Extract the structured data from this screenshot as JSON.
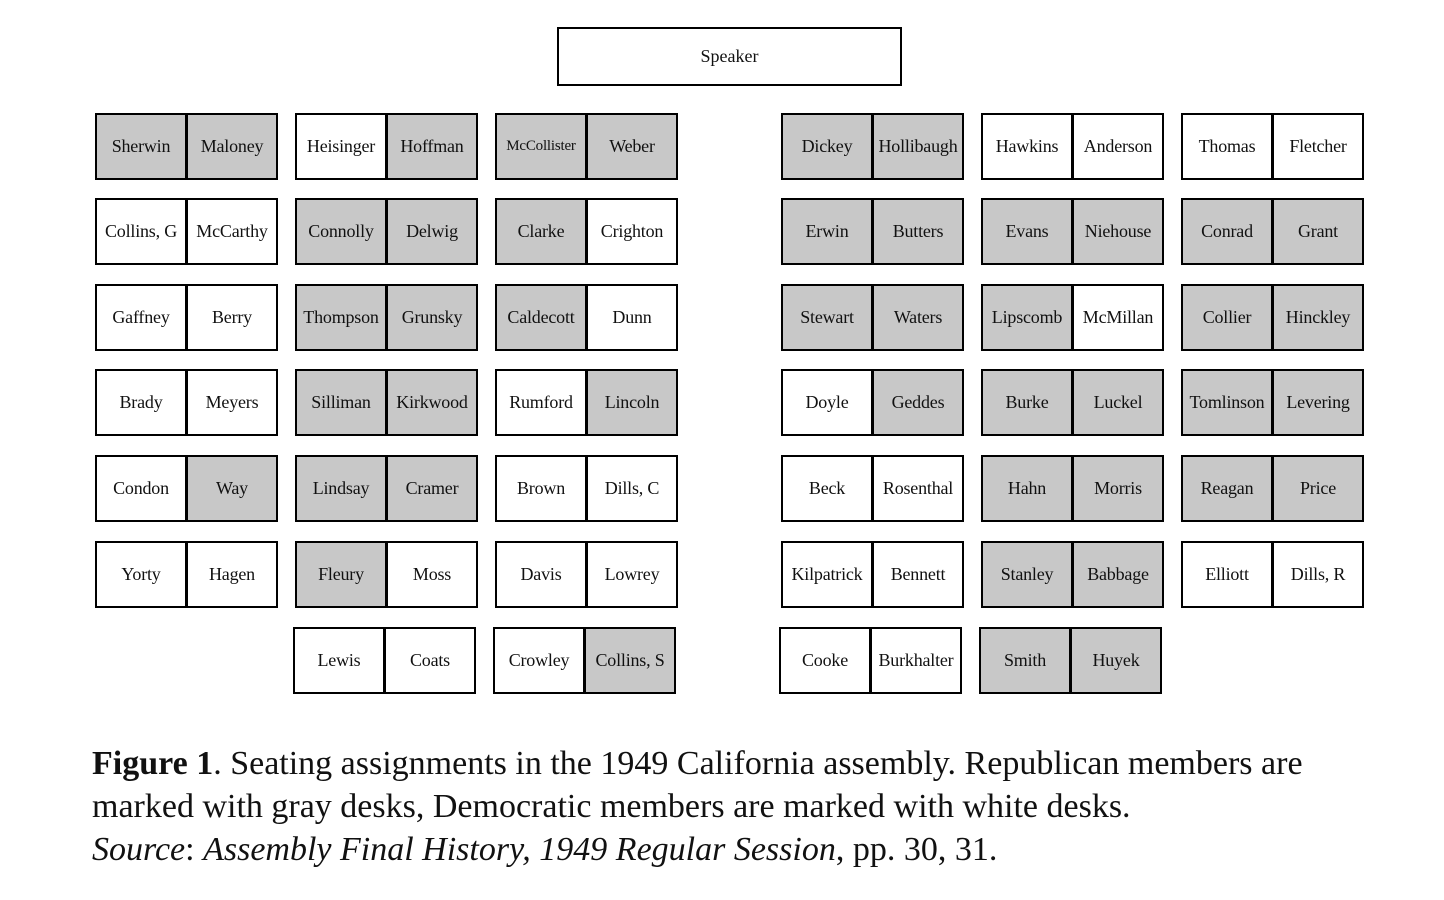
{
  "speaker": "Speaker",
  "party_colors": {
    "Republican": "#c8c8c8",
    "Democratic": "#ffffff"
  },
  "blocks": [
    {
      "rows": [
        [
          [
            "Sherwin",
            "R"
          ],
          [
            "Maloney",
            "R"
          ]
        ],
        [
          [
            "Collins, G",
            "D"
          ],
          [
            "McCarthy",
            "D"
          ]
        ],
        [
          [
            "Gaffney",
            "D"
          ],
          [
            "Berry",
            "D"
          ]
        ],
        [
          [
            "Brady",
            "D"
          ],
          [
            "Meyers",
            "D"
          ]
        ],
        [
          [
            "Condon",
            "D"
          ],
          [
            "Way",
            "R"
          ]
        ],
        [
          [
            "Yorty",
            "D"
          ],
          [
            "Hagen",
            "D"
          ]
        ]
      ]
    },
    {
      "rows": [
        [
          [
            "Heisinger",
            "D"
          ],
          [
            "Hoffman",
            "R"
          ]
        ],
        [
          [
            "Connolly",
            "R"
          ],
          [
            "Delwig",
            "R"
          ]
        ],
        [
          [
            "Thompson",
            "R"
          ],
          [
            "Grunsky",
            "R"
          ]
        ],
        [
          [
            "Silliman",
            "R"
          ],
          [
            "Kirkwood",
            "R"
          ]
        ],
        [
          [
            "Lindsay",
            "R"
          ],
          [
            "Cramer",
            "R"
          ]
        ],
        [
          [
            "Fleury",
            "R"
          ],
          [
            "Moss",
            "D"
          ]
        ],
        [
          [
            "Lewis",
            "D"
          ],
          [
            "Coats",
            "D"
          ]
        ]
      ]
    },
    {
      "rows": [
        [
          [
            "McCollister",
            "R"
          ],
          [
            "Weber",
            "R"
          ]
        ],
        [
          [
            "Clarke",
            "R"
          ],
          [
            "Crighton",
            "D"
          ]
        ],
        [
          [
            "Caldecott",
            "R"
          ],
          [
            "Dunn",
            "D"
          ]
        ],
        [
          [
            "Rumford",
            "D"
          ],
          [
            "Lincoln",
            "R"
          ]
        ],
        [
          [
            "Brown",
            "D"
          ],
          [
            "Dills, C",
            "D"
          ]
        ],
        [
          [
            "Davis",
            "D"
          ],
          [
            "Lowrey",
            "D"
          ]
        ],
        [
          [
            "Crowley",
            "D"
          ],
          [
            "Collins, S",
            "R"
          ]
        ]
      ]
    },
    {
      "rows": [
        [
          [
            "Dickey",
            "R"
          ],
          [
            "Hollibaugh",
            "R"
          ]
        ],
        [
          [
            "Erwin",
            "R"
          ],
          [
            "Butters",
            "R"
          ]
        ],
        [
          [
            "Stewart",
            "R"
          ],
          [
            "Waters",
            "R"
          ]
        ],
        [
          [
            "Doyle",
            "D"
          ],
          [
            "Geddes",
            "R"
          ]
        ],
        [
          [
            "Beck",
            "D"
          ],
          [
            "Rosenthal",
            "D"
          ]
        ],
        [
          [
            "Kilpatrick",
            "D"
          ],
          [
            "Bennett",
            "D"
          ]
        ],
        [
          [
            "Cooke",
            "D"
          ],
          [
            "Burkhalter",
            "D"
          ]
        ]
      ]
    },
    {
      "rows": [
        [
          [
            "Hawkins",
            "D"
          ],
          [
            "Anderson",
            "D"
          ]
        ],
        [
          [
            "Evans",
            "R"
          ],
          [
            "Niehouse",
            "R"
          ]
        ],
        [
          [
            "Lipscomb",
            "R"
          ],
          [
            "McMillan",
            "D"
          ]
        ],
        [
          [
            "Burke",
            "R"
          ],
          [
            "Luckel",
            "R"
          ]
        ],
        [
          [
            "Hahn",
            "R"
          ],
          [
            "Morris",
            "R"
          ]
        ],
        [
          [
            "Stanley",
            "R"
          ],
          [
            "Babbage",
            "R"
          ]
        ],
        [
          [
            "Smith",
            "R"
          ],
          [
            "Huyek",
            "R"
          ]
        ]
      ]
    },
    {
      "rows": [
        [
          [
            "Thomas",
            "D"
          ],
          [
            "Fletcher",
            "D"
          ]
        ],
        [
          [
            "Conrad",
            "R"
          ],
          [
            "Grant",
            "R"
          ]
        ],
        [
          [
            "Collier",
            "R"
          ],
          [
            "Hinckley",
            "R"
          ]
        ],
        [
          [
            "Tomlinson",
            "R"
          ],
          [
            "Levering",
            "R"
          ]
        ],
        [
          [
            "Reagan",
            "R"
          ],
          [
            "Price",
            "R"
          ]
        ],
        [
          [
            "Elliott",
            "D"
          ],
          [
            "Dills, R",
            "D"
          ]
        ]
      ]
    }
  ],
  "caption": {
    "figure_label": "Figure 1",
    "figure_text": ". Seating assignments in the 1949 California assembly. Republican members are marked with gray desks, Democratic members are marked with white desks.",
    "source_label": "Source",
    "source_sep": ": ",
    "source_title": "Assembly Final History, 1949 Regular Session",
    "source_pages": ", pp. 30, 31."
  }
}
